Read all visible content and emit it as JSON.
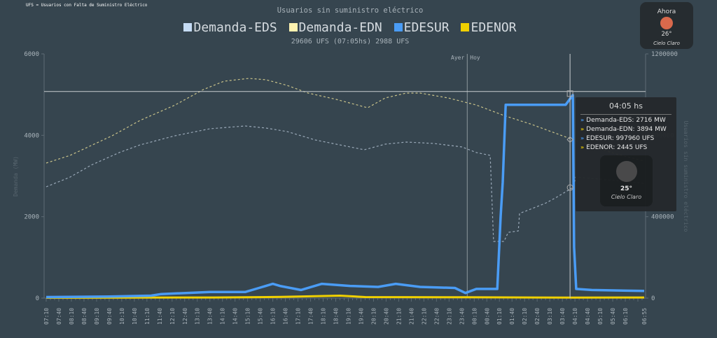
{
  "note": "UFS = Usuarios con Falta de Suministro Eléctrico",
  "header": {
    "title": "Usuarios sin suministro eléctrico",
    "subtitle": "29606 UFS (07:05hs) 2988 UFS"
  },
  "weather_now": {
    "label": "Ahora",
    "temp": "26°",
    "desc": "Cielo Claro",
    "icon": "sun-icon",
    "color": "#d9694c"
  },
  "tooltip": {
    "time": "04:05 hs",
    "rows": [
      {
        "label": "Demanda-EDS: 2716 MW",
        "arrow": "»",
        "color": "#4a9cf5"
      },
      {
        "label": "Demanda-EDN: 3894 MW",
        "arrow": "»",
        "color": "#f0d000"
      },
      {
        "label": "EDESUR: 997960 UFS",
        "arrow": "»",
        "color": "#4a9cf5"
      },
      {
        "label": "EDENOR: 2445 UFS",
        "arrow": "»",
        "color": "#f0d000"
      }
    ],
    "weather": {
      "temp": "25°",
      "desc": "Cielo Claro",
      "icon": "moon-icon"
    }
  },
  "chart_data": {
    "type": "line",
    "title": "Usuarios sin suministro eléctrico",
    "x_unit": "minutes since 07:10",
    "x_range": [
      0,
      1425
    ],
    "ylabel": "Demanda (MW)",
    "ylim": [
      0,
      6000
    ],
    "y_ticks": [
      "0",
      "2000",
      "4000",
      "6000"
    ],
    "y_tick_values": [
      0,
      2000,
      4000,
      6000
    ],
    "y2label": "Usuarios sin suministro eléctrico",
    "y2lim": [
      0,
      1200000
    ],
    "y2_ticks": [
      "0",
      "400000",
      "800000",
      "1200000"
    ],
    "y2_tick_values": [
      0,
      400000,
      800000,
      1200000
    ],
    "x_ticks": [
      "07:10",
      "07:40",
      "08:10",
      "08:40",
      "09:10",
      "09:40",
      "10:10",
      "10:40",
      "11:10",
      "11:40",
      "12:10",
      "12:40",
      "13:10",
      "13:40",
      "14:10",
      "14:40",
      "15:10",
      "15:40",
      "16:10",
      "16:40",
      "17:10",
      "17:40",
      "18:10",
      "18:40",
      "19:10",
      "19:40",
      "20:10",
      "20:40",
      "21:10",
      "21:40",
      "22:10",
      "22:40",
      "23:10",
      "23:40",
      "00:10",
      "00:40",
      "01:10",
      "01:40",
      "02:10",
      "02:40",
      "03:10",
      "03:40",
      "04:10",
      "04:40",
      "05:10",
      "05:40",
      "06:10",
      "06:55"
    ],
    "day_marker": {
      "minute": 1010,
      "left": "Ayer",
      "right": "Hoy"
    },
    "hover": {
      "minute": 1255,
      "value_y2": 997960
    },
    "legend": [
      {
        "name": "Demanda-EDS",
        "color": "#c6dcf5"
      },
      {
        "name": "Demanda-EDN",
        "color": "#fff3b0"
      },
      {
        "name": "EDESUR",
        "color": "#4a9cf5"
      },
      {
        "name": "EDENOR",
        "color": "#f0d000"
      }
    ],
    "series": [
      {
        "name": "Demanda-EDS",
        "axis": "left",
        "style": "dashed",
        "color": "#9aa9b8",
        "points": [
          [
            0,
            2733
          ],
          [
            57,
            2974
          ],
          [
            107,
            3266
          ],
          [
            174,
            3576
          ],
          [
            224,
            3765
          ],
          [
            307,
            3988
          ],
          [
            390,
            4160
          ],
          [
            474,
            4229
          ],
          [
            524,
            4177
          ],
          [
            574,
            4091
          ],
          [
            641,
            3885
          ],
          [
            691,
            3782
          ],
          [
            758,
            3644
          ],
          [
            808,
            3782
          ],
          [
            858,
            3833
          ],
          [
            924,
            3799
          ],
          [
            991,
            3713
          ],
          [
            1025,
            3576
          ],
          [
            1058,
            3507
          ],
          [
            1066,
            1392
          ],
          [
            1091,
            1392
          ],
          [
            1101,
            1616
          ],
          [
            1125,
            1650
          ],
          [
            1128,
            2080
          ],
          [
            1158,
            2200
          ],
          [
            1191,
            2338
          ],
          [
            1216,
            2475
          ],
          [
            1255,
            2716
          ],
          [
            1262,
            2974
          ],
          [
            1358,
            2888
          ],
          [
            1425,
            2820
          ]
        ]
      },
      {
        "name": "Demanda-EDN",
        "axis": "left",
        "style": "dashed",
        "color": "#c9c38a",
        "points": [
          [
            0,
            3318
          ],
          [
            57,
            3507
          ],
          [
            107,
            3748
          ],
          [
            157,
            3988
          ],
          [
            224,
            4366
          ],
          [
            307,
            4744
          ],
          [
            374,
            5122
          ],
          [
            424,
            5329
          ],
          [
            483,
            5398
          ],
          [
            524,
            5364
          ],
          [
            574,
            5226
          ],
          [
            624,
            5037
          ],
          [
            691,
            4882
          ],
          [
            766,
            4676
          ],
          [
            808,
            4917
          ],
          [
            858,
            5037
          ],
          [
            891,
            5037
          ],
          [
            958,
            4917
          ],
          [
            1025,
            4744
          ],
          [
            1091,
            4486
          ],
          [
            1158,
            4263
          ],
          [
            1255,
            3894
          ],
          [
            1358,
            3540
          ],
          [
            1425,
            3370
          ]
        ]
      },
      {
        "name": "EDESUR",
        "axis": "right",
        "style": "solid",
        "color": "#4a9cf5",
        "points": [
          [
            0,
            5000
          ],
          [
            150,
            8000
          ],
          [
            250,
            12000
          ],
          [
            274,
            20000
          ],
          [
            390,
            30000
          ],
          [
            474,
            30000
          ],
          [
            507,
            50000
          ],
          [
            540,
            70000
          ],
          [
            557,
            60000
          ],
          [
            607,
            40000
          ],
          [
            657,
            70000
          ],
          [
            724,
            60000
          ],
          [
            791,
            55000
          ],
          [
            833,
            70000
          ],
          [
            891,
            55000
          ],
          [
            974,
            50000
          ],
          [
            999,
            25000
          ],
          [
            1025,
            45000
          ],
          [
            1075,
            45000
          ],
          [
            1083,
            400000
          ],
          [
            1088,
            570000
          ],
          [
            1095,
            950000
          ],
          [
            1238,
            950000
          ],
          [
            1255,
            997960
          ],
          [
            1258,
            250000
          ],
          [
            1263,
            45000
          ],
          [
            1300,
            40000
          ],
          [
            1425,
            35000
          ]
        ]
      },
      {
        "name": "EDENOR",
        "axis": "right",
        "style": "solid",
        "color": "#f0d000",
        "points": [
          [
            0,
            2000
          ],
          [
            400,
            3000
          ],
          [
            560,
            6000
          ],
          [
            700,
            12000
          ],
          [
            760,
            5000
          ],
          [
            1000,
            4000
          ],
          [
            1255,
            2445
          ],
          [
            1425,
            3000
          ]
        ]
      }
    ]
  }
}
